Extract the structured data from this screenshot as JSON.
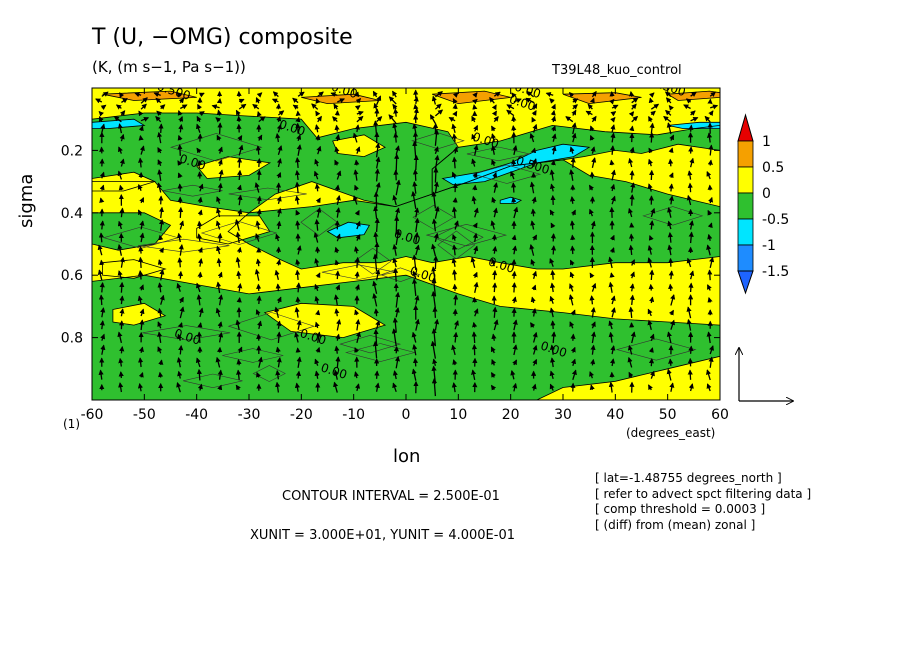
{
  "chart_data": {
    "type": "heatmap",
    "title": "T (U, −OMG) composite",
    "subtitle": "(K, (m s−1, Pa s−1))",
    "run_name": "T39L48_kuo_control",
    "xlabel": "lon",
    "ylabel": "sigma",
    "x_unit_label": "(degrees_east)",
    "level_label": "(1)",
    "xlim": [
      -60,
      60
    ],
    "ylim": [
      1.0,
      0.0
    ],
    "x_ticks": [
      -60,
      -50,
      -40,
      -30,
      -20,
      -10,
      0,
      10,
      20,
      30,
      40,
      50,
      60
    ],
    "x_tick_labels": [
      "-60",
      "-50",
      "-40",
      "-30",
      "-20",
      "-10",
      "0",
      "10",
      "20",
      "30",
      "40",
      "50",
      "60"
    ],
    "y_ticks": [
      0.2,
      0.4,
      0.6,
      0.8
    ],
    "y_tick_labels": [
      "0.2",
      "0.4",
      "0.6",
      "0.8"
    ],
    "colorbar": {
      "labels": [
        "1",
        "0.5",
        "0",
        "-0.5",
        "-1",
        "-1.5"
      ],
      "levels": [
        1,
        0.5,
        0,
        -0.5,
        -1,
        -1.5
      ],
      "colors": [
        "#e60000",
        "#f5a000",
        "#ffff00",
        "#2fc02f",
        "#00e5ff",
        "#1e8cff",
        "#1e64ff"
      ]
    },
    "contour_labels": [
      {
        "text": "0.00",
        "lon": -12,
        "sigma": 0.02
      },
      {
        "text": "0.00",
        "lon": 23,
        "sigma": 0.02
      },
      {
        "text": "-0.500",
        "lon": -45,
        "sigma": 0.02
      },
      {
        "text": "0.500",
        "lon": 50,
        "sigma": 0.01
      },
      {
        "text": "0.00",
        "lon": 22,
        "sigma": 0.06
      },
      {
        "text": "0.00",
        "lon": -22,
        "sigma": 0.14
      },
      {
        "text": "0.00",
        "lon": 15,
        "sigma": 0.18
      },
      {
        "text": "0.00",
        "lon": -41,
        "sigma": 0.25
      },
      {
        "text": "0.500",
        "lon": 24,
        "sigma": 0.26
      },
      {
        "text": "0.00",
        "lon": 0,
        "sigma": 0.49
      },
      {
        "text": "0.00",
        "lon": 3,
        "sigma": 0.61
      },
      {
        "text": "0.00",
        "lon": 18,
        "sigma": 0.58
      },
      {
        "text": "0.00",
        "lon": -42,
        "sigma": 0.81
      },
      {
        "text": "0.00",
        "lon": -18,
        "sigma": 0.81
      },
      {
        "text": "0.00",
        "lon": -14,
        "sigma": 0.92
      },
      {
        "text": "0.00",
        "lon": 28,
        "sigma": 0.85
      }
    ],
    "regions": [
      {
        "value": -0.25,
        "comment": "green: lower troposphere west of 0",
        "poly": [
          [
            -60,
            1.0
          ],
          [
            -60,
            0.62
          ],
          [
            -50,
            0.6
          ],
          [
            -40,
            0.63
          ],
          [
            -30,
            0.66
          ],
          [
            -20,
            0.64
          ],
          [
            -10,
            0.62
          ],
          [
            0,
            0.6
          ],
          [
            10,
            0.66
          ],
          [
            18,
            0.7
          ],
          [
            30,
            0.72
          ],
          [
            40,
            0.74
          ],
          [
            50,
            0.75
          ],
          [
            60,
            0.76
          ],
          [
            60,
            0.86
          ],
          [
            50,
            0.9
          ],
          [
            45,
            0.92
          ],
          [
            40,
            0.94
          ],
          [
            30,
            0.96
          ],
          [
            25,
            1.0
          ]
        ]
      },
      {
        "value": -0.25,
        "comment": "green: western upper/mid column",
        "poly": [
          [
            -60,
            0.1
          ],
          [
            -50,
            0.08
          ],
          [
            -40,
            0.08
          ],
          [
            -30,
            0.09
          ],
          [
            -20,
            0.1
          ],
          [
            -17,
            0.16
          ],
          [
            -10,
            0.13
          ],
          [
            0,
            0.11
          ],
          [
            8,
            0.14
          ],
          [
            10,
            0.19
          ],
          [
            5,
            0.26
          ],
          [
            5,
            0.34
          ],
          [
            -2,
            0.38
          ],
          [
            -8,
            0.36
          ],
          [
            -18,
            0.3
          ],
          [
            -25,
            0.34
          ],
          [
            -30,
            0.4
          ],
          [
            -38,
            0.38
          ],
          [
            -45,
            0.36
          ],
          [
            -48,
            0.3
          ],
          [
            -60,
            0.3
          ]
        ]
      },
      {
        "value": -0.25,
        "comment": "green: mid-troposphere band",
        "poly": [
          [
            -60,
            0.4
          ],
          [
            -50,
            0.4
          ],
          [
            -45,
            0.44
          ],
          [
            -48,
            0.5
          ],
          [
            -55,
            0.52
          ],
          [
            -60,
            0.5
          ]
        ]
      },
      {
        "value": -0.25,
        "comment": "green: central mid band",
        "poly": [
          [
            -30,
            0.4
          ],
          [
            -18,
            0.38
          ],
          [
            -10,
            0.36
          ],
          [
            -2,
            0.38
          ],
          [
            5,
            0.34
          ],
          [
            12,
            0.3
          ],
          [
            20,
            0.25
          ],
          [
            30,
            0.23
          ],
          [
            35,
            0.28
          ],
          [
            42,
            0.3
          ],
          [
            50,
            0.34
          ],
          [
            60,
            0.38
          ],
          [
            60,
            0.54
          ],
          [
            50,
            0.56
          ],
          [
            40,
            0.56
          ],
          [
            30,
            0.58
          ],
          [
            25,
            0.58
          ],
          [
            18,
            0.56
          ],
          [
            12,
            0.54
          ],
          [
            5,
            0.56
          ],
          [
            0,
            0.54
          ],
          [
            -5,
            0.56
          ],
          [
            -12,
            0.56
          ],
          [
            -20,
            0.58
          ],
          [
            -24,
            0.55
          ],
          [
            -30,
            0.5
          ],
          [
            -34,
            0.46
          ]
        ]
      },
      {
        "value": -0.25,
        "comment": "green: east upper",
        "poly": [
          [
            10,
            0.19
          ],
          [
            18,
            0.17
          ],
          [
            28,
            0.12
          ],
          [
            38,
            0.14
          ],
          [
            48,
            0.15
          ],
          [
            55,
            0.13
          ],
          [
            60,
            0.12
          ],
          [
            60,
            0.2
          ],
          [
            52,
            0.18
          ],
          [
            45,
            0.21
          ],
          [
            40,
            0.2
          ],
          [
            34,
            0.22
          ],
          [
            30,
            0.23
          ],
          [
            20,
            0.25
          ],
          [
            12,
            0.3
          ],
          [
            5,
            0.34
          ],
          [
            5,
            0.26
          ]
        ]
      },
      {
        "value": 0.25,
        "comment": "yellow islands in west",
        "poly": [
          [
            -60,
            0.29
          ],
          [
            -52,
            0.27
          ],
          [
            -48,
            0.3
          ],
          [
            -54,
            0.33
          ],
          [
            -60,
            0.33
          ]
        ]
      },
      {
        "value": 0.25,
        "poly": [
          [
            -40,
            0.25
          ],
          [
            -34,
            0.22
          ],
          [
            -26,
            0.24
          ],
          [
            -30,
            0.28
          ],
          [
            -38,
            0.29
          ]
        ]
      },
      {
        "value": 0.25,
        "poly": [
          [
            -40,
            0.45
          ],
          [
            -36,
            0.41
          ],
          [
            -28,
            0.41
          ],
          [
            -26,
            0.46
          ],
          [
            -34,
            0.5
          ],
          [
            -40,
            0.48
          ]
        ]
      },
      {
        "value": 0.25,
        "poly": [
          [
            -58,
            0.56
          ],
          [
            -52,
            0.55
          ],
          [
            -46,
            0.58
          ],
          [
            -52,
            0.61
          ],
          [
            -58,
            0.6
          ]
        ]
      },
      {
        "value": 0.25,
        "poly": [
          [
            -56,
            0.71
          ],
          [
            -50,
            0.69
          ],
          [
            -46,
            0.73
          ],
          [
            -52,
            0.76
          ],
          [
            -56,
            0.75
          ]
        ]
      },
      {
        "value": 0.25,
        "poly": [
          [
            -27,
            0.72
          ],
          [
            -20,
            0.69
          ],
          [
            -10,
            0.7
          ],
          [
            -4,
            0.76
          ],
          [
            -12,
            0.8
          ],
          [
            -22,
            0.78
          ]
        ]
      },
      {
        "value": 0.25,
        "poly": [
          [
            -14,
            0.17
          ],
          [
            -8,
            0.15
          ],
          [
            -4,
            0.19
          ],
          [
            -8,
            0.22
          ],
          [
            -13,
            0.21
          ]
        ]
      },
      {
        "value": -0.75,
        "comment": "cyan patches",
        "poly": [
          [
            7,
            0.29
          ],
          [
            14,
            0.27
          ],
          [
            20,
            0.24
          ],
          [
            25,
            0.2
          ],
          [
            30,
            0.18
          ],
          [
            35,
            0.19
          ],
          [
            32,
            0.22
          ],
          [
            25,
            0.24
          ],
          [
            20,
            0.27
          ],
          [
            15,
            0.3
          ],
          [
            9,
            0.31
          ]
        ]
      },
      {
        "value": -0.75,
        "poly": [
          [
            -15,
            0.46
          ],
          [
            -11,
            0.43
          ],
          [
            -7,
            0.44
          ],
          [
            -8,
            0.47
          ],
          [
            -13,
            0.48
          ]
        ]
      },
      {
        "value": -0.75,
        "poly": [
          [
            18,
            0.36
          ],
          [
            20,
            0.35
          ],
          [
            22,
            0.36
          ],
          [
            21,
            0.37
          ],
          [
            18,
            0.37
          ]
        ]
      },
      {
        "value": -0.75,
        "poly": [
          [
            50,
            0.12
          ],
          [
            56,
            0.11
          ],
          [
            60,
            0.11
          ],
          [
            60,
            0.13
          ],
          [
            53,
            0.13
          ]
        ]
      },
      {
        "value": -0.75,
        "poly": [
          [
            -60,
            0.11
          ],
          [
            -52,
            0.1
          ],
          [
            -50,
            0.12
          ],
          [
            -57,
            0.13
          ],
          [
            -60,
            0.13
          ]
        ]
      },
      {
        "value": 0.75,
        "comment": "orange near model top",
        "poly": [
          [
            -58,
            0.02
          ],
          [
            -45,
            0.01
          ],
          [
            -40,
            0.03
          ],
          [
            -52,
            0.04
          ]
        ]
      },
      {
        "value": 0.75,
        "poly": [
          [
            -20,
            0.03
          ],
          [
            -10,
            0.02
          ],
          [
            -5,
            0.04
          ],
          [
            -15,
            0.05
          ]
        ]
      },
      {
        "value": 0.75,
        "poly": [
          [
            5,
            0.02
          ],
          [
            15,
            0.01
          ],
          [
            20,
            0.03
          ],
          [
            10,
            0.05
          ]
        ]
      },
      {
        "value": 0.75,
        "poly": [
          [
            30,
            0.02
          ],
          [
            40,
            0.015
          ],
          [
            45,
            0.03
          ],
          [
            35,
            0.05
          ]
        ]
      },
      {
        "value": 0.75,
        "poly": [
          [
            50,
            0.02
          ],
          [
            58,
            0.01
          ],
          [
            60,
            0.015
          ],
          [
            60,
            0.03
          ],
          [
            52,
            0.04
          ]
        ]
      }
    ],
    "vector_grid": {
      "lon_step": 3.75,
      "sigma_levels": [
        0.02,
        0.04,
        0.06,
        0.08,
        0.1,
        0.13,
        0.16,
        0.2,
        0.24,
        0.28,
        0.32,
        0.36,
        0.4,
        0.44,
        0.48,
        0.52,
        0.56,
        0.6,
        0.64,
        0.68,
        0.72,
        0.76,
        0.8,
        0.84,
        0.88,
        0.92,
        0.96
      ]
    },
    "reference_vector": {
      "x_unit": 30.0,
      "y_unit": 0.4
    }
  },
  "annotations": {
    "contour_interval": "CONTOUR INTERVAL = 2.500E-01",
    "units_line": "XUNIT = 3.000E+01, YUNIT = 4.000E-01",
    "notes": [
      "[ lat=-1.48755 degrees_north ]",
      "[ refer to advect spct filtering data ]",
      "[ comp threshold = 0.0003 ]",
      "[ (diff) from (mean) zonal ]"
    ]
  }
}
